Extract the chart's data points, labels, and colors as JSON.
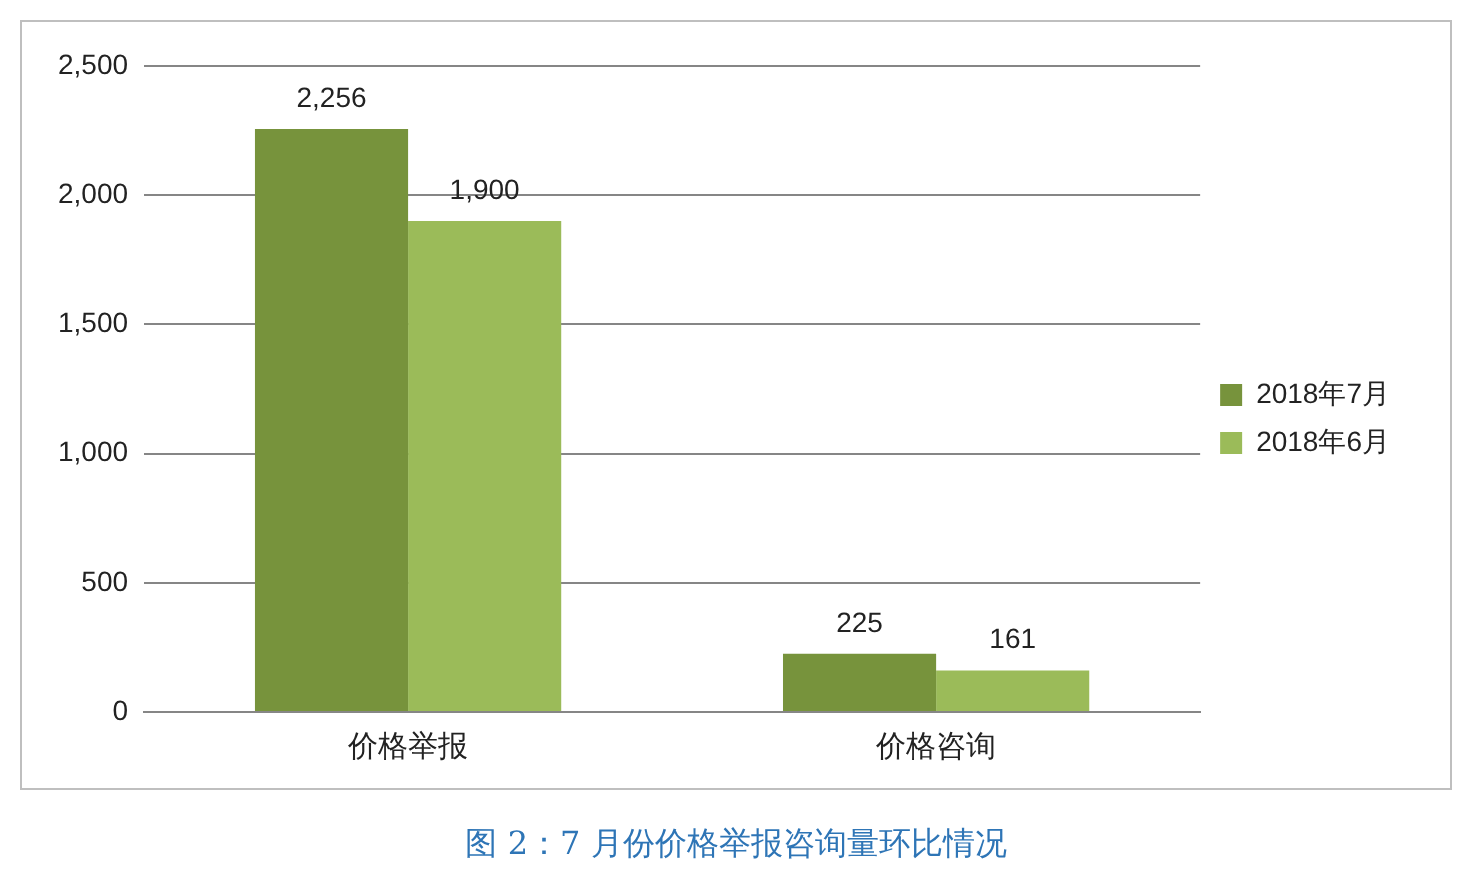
{
  "chart_data": {
    "type": "bar",
    "title": "图 2：7 月份价格举报咨询量环比情况",
    "categories": [
      "价格举报",
      "价格咨询"
    ],
    "series": [
      {
        "name": "2018年7月",
        "color": "#77933c",
        "values": [
          2256,
          225
        ],
        "value_labels": [
          "2,256",
          "225"
        ]
      },
      {
        "name": "2018年6月",
        "color": "#9bbb59",
        "values": [
          1900,
          161
        ],
        "value_labels": [
          "1,900",
          "161"
        ]
      }
    ],
    "ylim": [
      0,
      2500
    ],
    "yticks": [
      {
        "value": 0,
        "label": "0"
      },
      {
        "value": 500,
        "label": "500"
      },
      {
        "value": 1000,
        "label": "1,000"
      },
      {
        "value": 1500,
        "label": "1,500"
      },
      {
        "value": 2000,
        "label": "2,000"
      },
      {
        "value": 2500,
        "label": "2,500"
      }
    ],
    "grid": "y",
    "legend": "right"
  }
}
